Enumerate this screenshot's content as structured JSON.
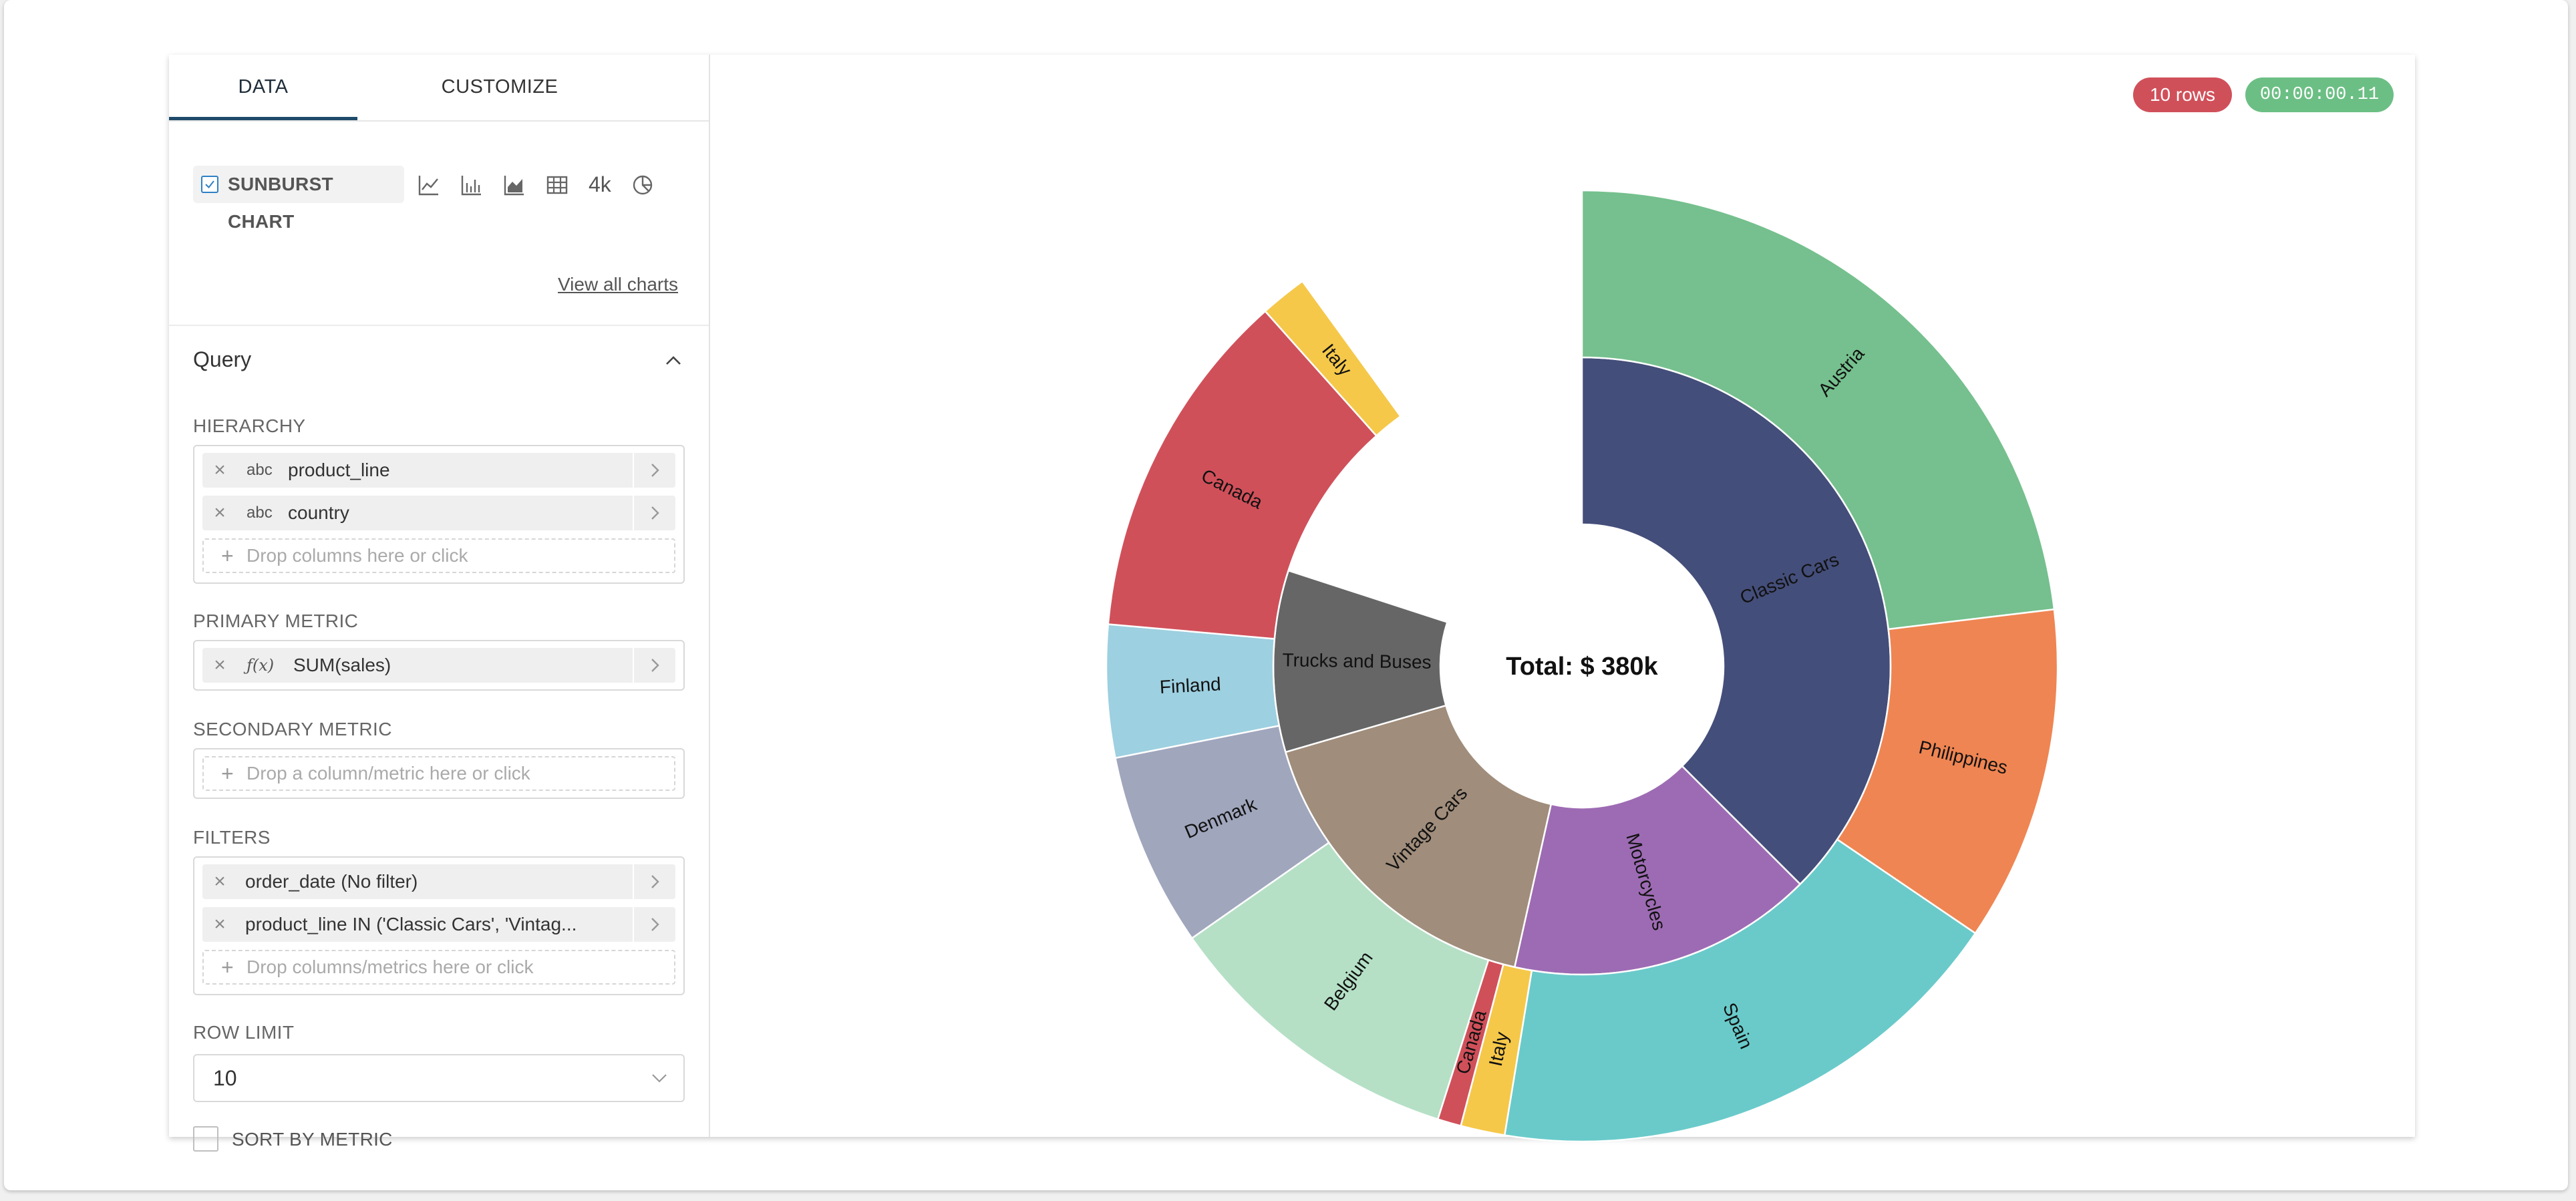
{
  "tabs": {
    "data": "DATA",
    "customize": "CUSTOMIZE"
  },
  "viz": {
    "selected": "SUNBURST CHART",
    "four_k": "4k",
    "view_all": "View all charts"
  },
  "query": {
    "title": "Query",
    "hierarchy": {
      "label": "HIERARCHY",
      "items": [
        {
          "type": "abc",
          "name": "product_line"
        },
        {
          "type": "abc",
          "name": "country"
        }
      ],
      "drop_placeholder": "Drop columns here or click"
    },
    "primary_metric": {
      "label": "PRIMARY METRIC",
      "type": "ƒ(x)",
      "name": "SUM(sales)"
    },
    "secondary_metric": {
      "label": "SECONDARY METRIC",
      "drop_placeholder": "Drop a column/metric here or click"
    },
    "filters": {
      "label": "FILTERS",
      "items": [
        "order_date (No filter)",
        "product_line IN ('Classic Cars', 'Vintag..."
      ],
      "drop_placeholder": "Drop columns/metrics here or click"
    },
    "row_limit": {
      "label": "ROW LIMIT",
      "value": "10"
    },
    "sort_by_metric": {
      "label": "SORT BY METRIC",
      "checked": false
    }
  },
  "badges": {
    "rows": "10 rows",
    "time": "00:00:00.11"
  },
  "chart_data": {
    "type": "sunburst",
    "center_label": "Total: $ 380k",
    "inner": [
      {
        "name": "Classic Cars",
        "fraction": 0.375,
        "color": "#444e7a"
      },
      {
        "name": "Motorcycles",
        "fraction": 0.16,
        "color": "#9d6bb3"
      },
      {
        "name": "Vintage Cars",
        "fraction": 0.17,
        "color": "#a08d7b"
      },
      {
        "name": "Trucks and Buses",
        "fraction": 0.095,
        "color": "#666666"
      }
    ],
    "outer": [
      {
        "name": "Austria",
        "parent": "Classic Cars",
        "fraction": 0.231,
        "color": "#75c08e"
      },
      {
        "name": "Philippines",
        "parent": "Classic Cars",
        "fraction": 0.114,
        "color": "#ef8552"
      },
      {
        "name": "Spain",
        "parent": "Classic Cars",
        "fraction": 0.181,
        "color": "#6acaca"
      },
      {
        "name": "Italy",
        "parent": "Motorcycles",
        "fraction": 0.015,
        "color": "#f5c84a"
      },
      {
        "name": "Canada",
        "parent": "Motorcycles",
        "fraction": 0.008,
        "color": "#d0505a"
      },
      {
        "name": "Belgium",
        "parent": "Vintage Cars",
        "fraction": 0.104,
        "color": "#b5e0c6"
      },
      {
        "name": "Denmark",
        "parent": "Vintage Cars",
        "fraction": 0.066,
        "color": "#a0a6bc"
      },
      {
        "name": "Finland",
        "parent": "Trucks and Buses",
        "fraction": 0.045,
        "color": "#9dd0e0"
      },
      {
        "name": "Canada",
        "parent": "Trucks and Buses",
        "fraction": 0.12,
        "color": "#d0505a"
      },
      {
        "name": "Italy",
        "parent": "Trucks and Buses",
        "fraction": 0.016,
        "color": "#f5c84a"
      }
    ]
  }
}
